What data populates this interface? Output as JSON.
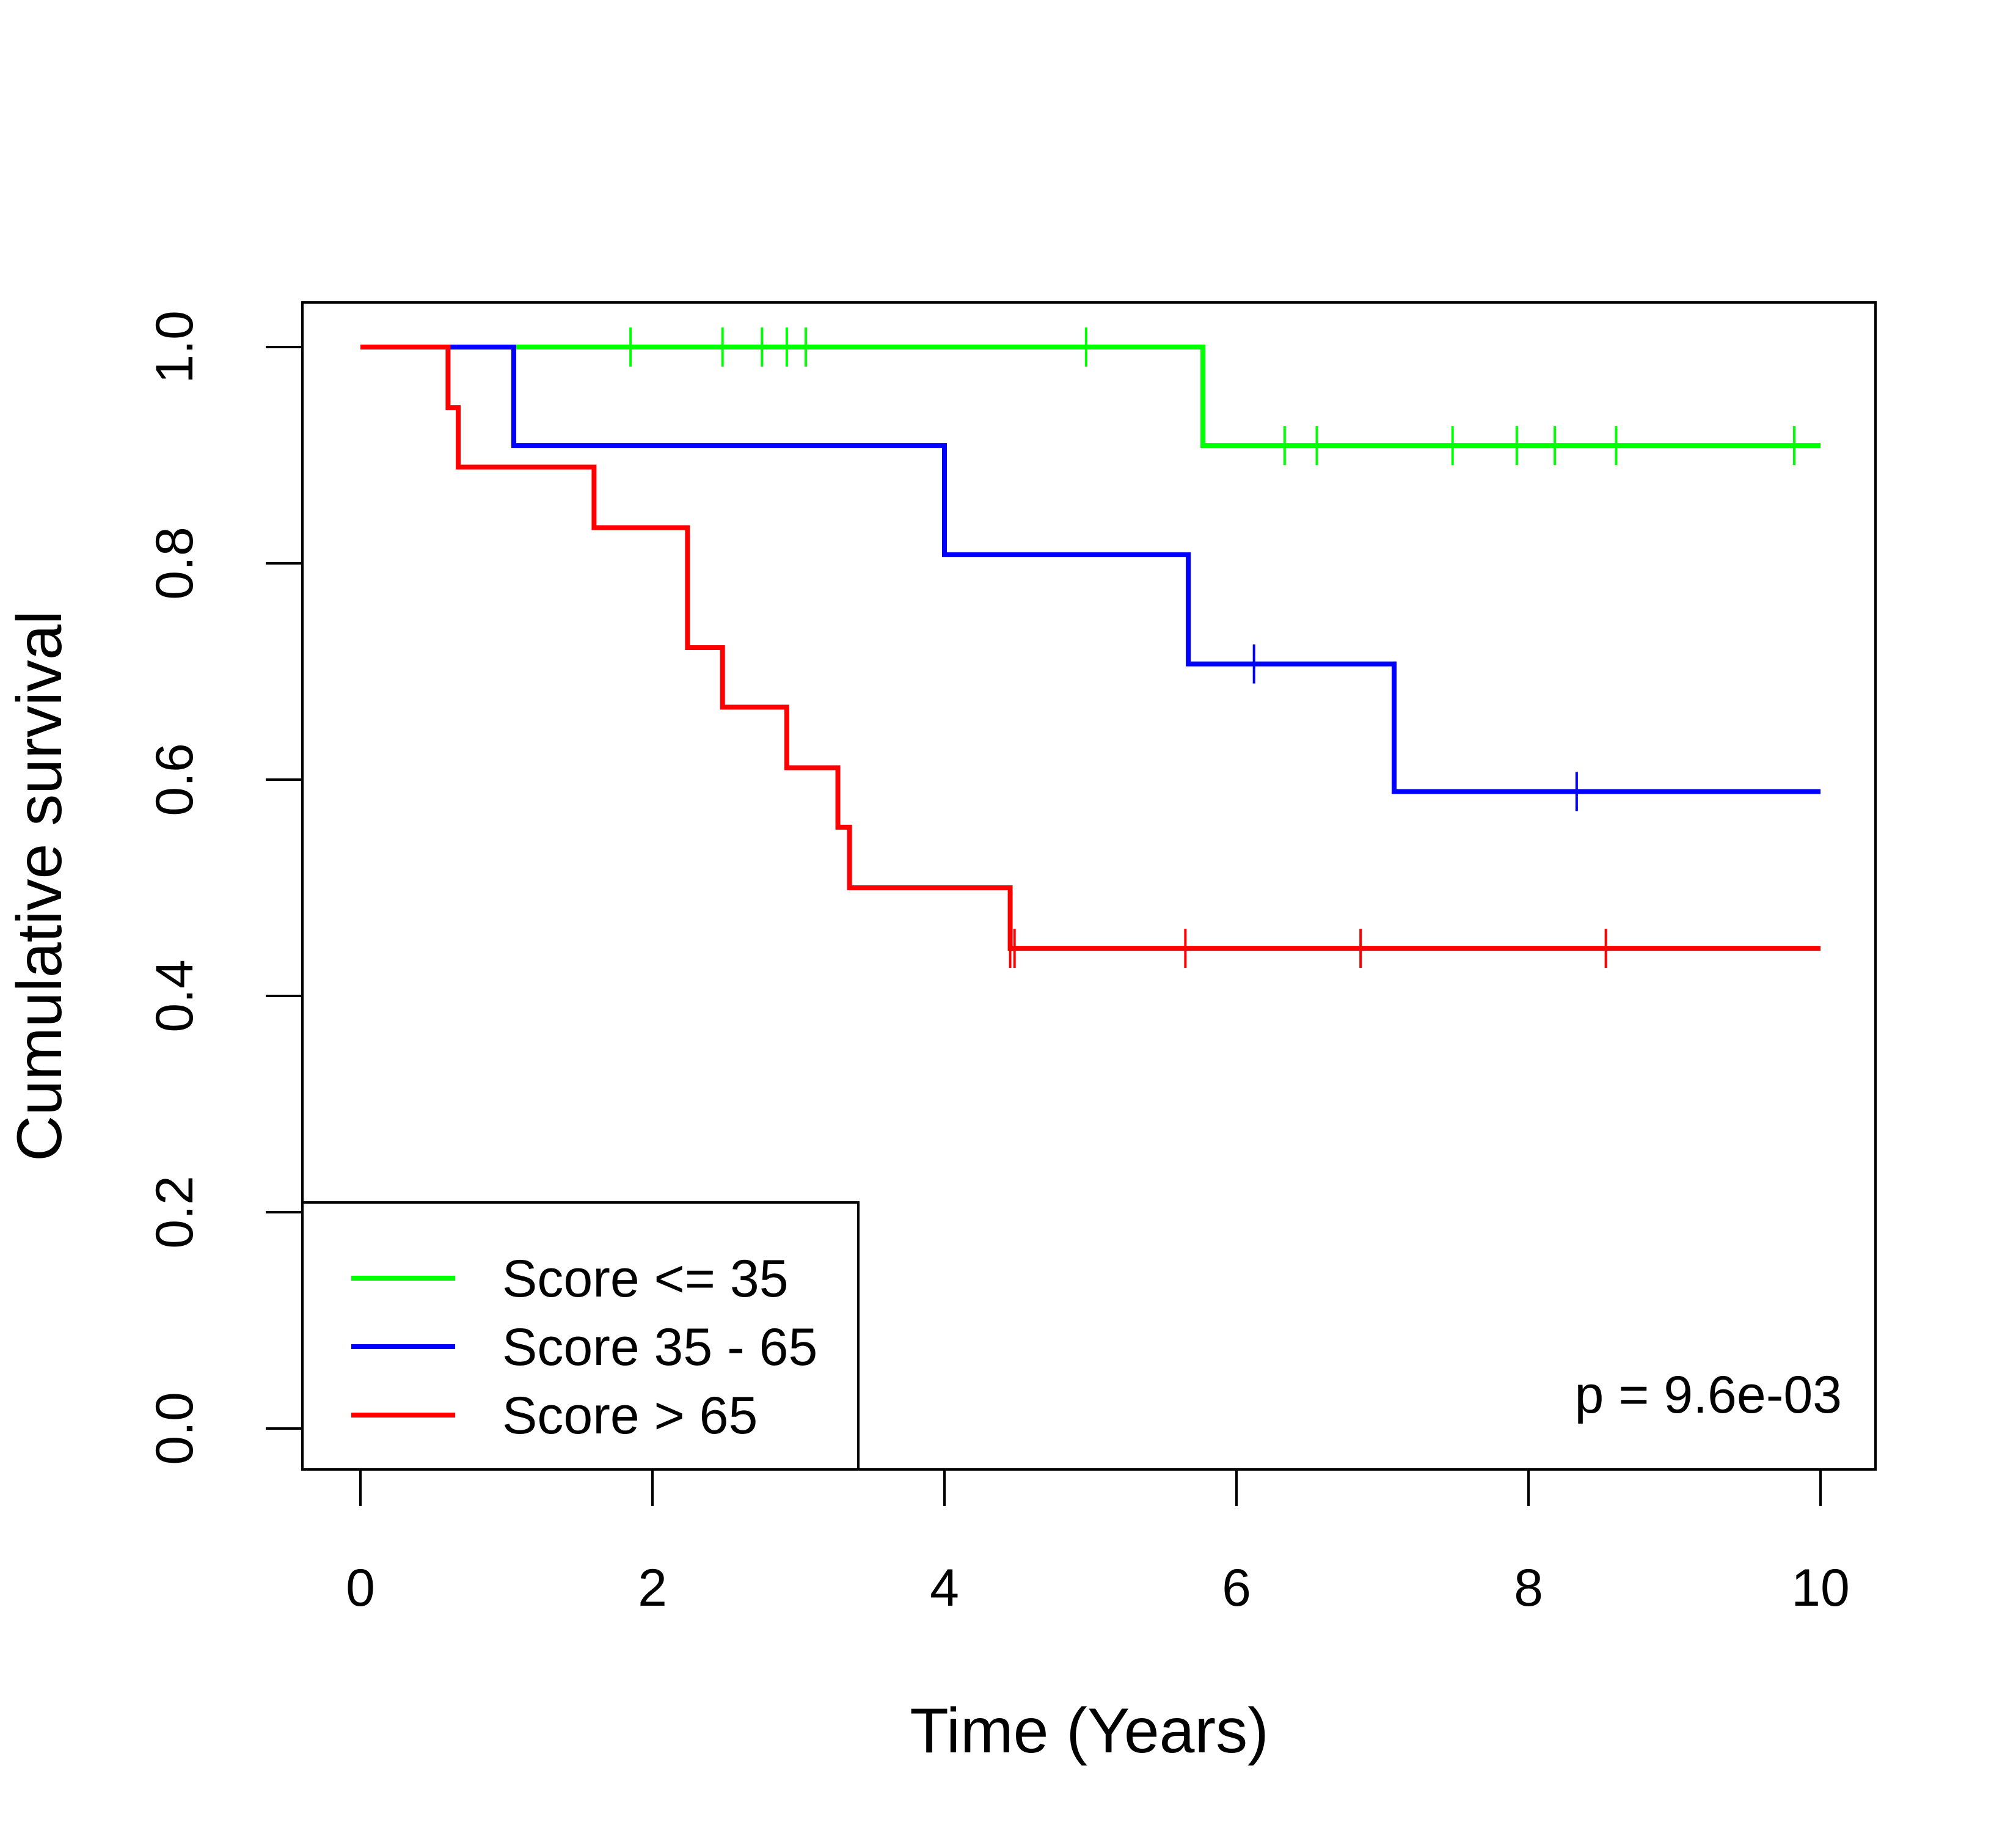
{
  "chart_data": {
    "type": "line",
    "subtype": "kaplan-meier-step",
    "title": "",
    "xlabel": "Time (Years)",
    "ylabel": "Cumulative survival",
    "xlim": [
      0,
      10
    ],
    "ylim": [
      0,
      1
    ],
    "x_ticks": [
      0,
      2,
      4,
      6,
      8,
      10
    ],
    "x_tick_labels": [
      "0",
      "2",
      "4",
      "6",
      "8",
      "10"
    ],
    "y_ticks": [
      0,
      0.2,
      0.4,
      0.6,
      0.8,
      1
    ],
    "y_tick_labels": [
      "0.0",
      "0.2",
      "0.4",
      "0.6",
      "0.8",
      "1.0"
    ],
    "grid": false,
    "legend_position": "bottom-left",
    "annotation": "p = 9.6e-03",
    "series": [
      {
        "name": "Score <= 35",
        "color": "#00ff00",
        "steps": [
          [
            0,
            1.0
          ],
          [
            5.77,
            0.909
          ],
          [
            10,
            0.909
          ]
        ],
        "censors": [
          [
            1.85,
            1.0
          ],
          [
            2.48,
            1.0
          ],
          [
            2.75,
            1.0
          ],
          [
            2.92,
            1.0
          ],
          [
            3.05,
            1.0
          ],
          [
            4.97,
            1.0
          ],
          [
            6.33,
            0.909
          ],
          [
            6.55,
            0.909
          ],
          [
            7.48,
            0.909
          ],
          [
            7.92,
            0.909
          ],
          [
            8.18,
            0.909
          ],
          [
            8.6,
            0.909
          ],
          [
            9.82,
            0.909
          ]
        ]
      },
      {
        "name": "Score 35 - 65",
        "color": "#0000ff",
        "steps": [
          [
            0,
            1.0
          ],
          [
            1.05,
            0.909
          ],
          [
            4.0,
            0.808
          ],
          [
            5.67,
            0.707
          ],
          [
            7.08,
            0.589
          ],
          [
            10,
            0.589
          ]
        ],
        "censors": [
          [
            1.05,
            0.955
          ],
          [
            6.12,
            0.707
          ],
          [
            8.33,
            0.589
          ]
        ]
      },
      {
        "name": "Score > 65",
        "color": "#ff0000",
        "steps": [
          [
            0,
            1.0
          ],
          [
            0.6,
            0.944
          ],
          [
            0.67,
            0.889
          ],
          [
            1.6,
            0.833
          ],
          [
            2.24,
            0.722
          ],
          [
            2.48,
            0.667
          ],
          [
            2.92,
            0.611
          ],
          [
            3.27,
            0.556
          ],
          [
            3.35,
            0.5
          ],
          [
            4.45,
            0.444
          ],
          [
            10,
            0.444
          ]
        ],
        "censors": [
          [
            4.45,
            0.444
          ],
          [
            4.48,
            0.444
          ],
          [
            5.65,
            0.444
          ],
          [
            6.85,
            0.444
          ],
          [
            8.53,
            0.444
          ]
        ]
      }
    ]
  }
}
